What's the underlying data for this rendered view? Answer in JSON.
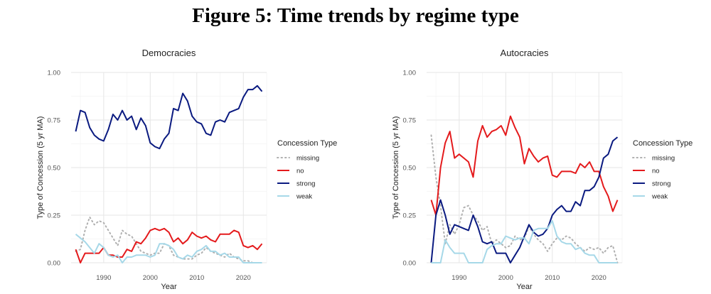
{
  "figure_title": "Figure 5: Time trends by regime type",
  "colors": {
    "missing": "#b0b0b0",
    "no": "#e41a1c",
    "strong": "#0a1a80",
    "weak": "#a6d8e8"
  },
  "chart_data": [
    {
      "type": "line",
      "title": "Democracies",
      "xlabel": "Year",
      "ylabel": "Type of Concession (5 yr MA)",
      "xlim": [
        1983,
        2025
      ],
      "ylim": [
        0,
        1
      ],
      "xticks": [
        1990,
        2000,
        2010,
        2020
      ],
      "yticks": [
        "0.00",
        "0.25",
        "0.50",
        "0.75",
        "1.00"
      ],
      "legend_title": "Concession Type",
      "legend_position": "right",
      "x": [
        1984,
        1985,
        1986,
        1987,
        1988,
        1989,
        1990,
        1991,
        1992,
        1993,
        1994,
        1995,
        1996,
        1997,
        1998,
        1999,
        2000,
        2001,
        2002,
        2003,
        2004,
        2005,
        2006,
        2007,
        2008,
        2009,
        2010,
        2011,
        2012,
        2013,
        2014,
        2015,
        2016,
        2017,
        2018,
        2019,
        2020,
        2021,
        2022,
        2023,
        2024
      ],
      "series": [
        {
          "name": "missing",
          "values": [
            0.06,
            0.07,
            0.17,
            0.24,
            0.2,
            0.22,
            0.21,
            0.17,
            0.13,
            0.09,
            0.17,
            0.15,
            0.14,
            0.1,
            0.06,
            0.05,
            0.04,
            0.05,
            0.05,
            0.1,
            0.09,
            0.04,
            0.03,
            0.02,
            0.02,
            0.02,
            0.04,
            0.05,
            0.08,
            0.06,
            0.05,
            0.04,
            0.03,
            0.05,
            0.03,
            0.02,
            0.01,
            0.01,
            0.0,
            0.0,
            0.0
          ]
        },
        {
          "name": "no",
          "values": [
            0.07,
            0.0,
            0.05,
            0.05,
            0.05,
            0.05,
            0.08,
            0.04,
            0.04,
            0.03,
            0.03,
            0.07,
            0.06,
            0.11,
            0.1,
            0.13,
            0.17,
            0.18,
            0.17,
            0.18,
            0.16,
            0.11,
            0.13,
            0.1,
            0.12,
            0.16,
            0.14,
            0.13,
            0.14,
            0.12,
            0.11,
            0.15,
            0.15,
            0.15,
            0.17,
            0.16,
            0.09,
            0.08,
            0.09,
            0.07,
            0.1
          ]
        },
        {
          "name": "strong",
          "values": [
            0.69,
            0.8,
            0.79,
            0.71,
            0.67,
            0.65,
            0.64,
            0.7,
            0.78,
            0.75,
            0.8,
            0.75,
            0.77,
            0.7,
            0.76,
            0.72,
            0.63,
            0.61,
            0.6,
            0.65,
            0.68,
            0.81,
            0.8,
            0.89,
            0.85,
            0.77,
            0.74,
            0.73,
            0.68,
            0.67,
            0.74,
            0.75,
            0.74,
            0.79,
            0.8,
            0.81,
            0.87,
            0.91,
            0.91,
            0.93,
            0.9
          ]
        },
        {
          "name": "weak",
          "values": [
            0.15,
            0.13,
            0.11,
            0.08,
            0.05,
            0.1,
            0.08,
            0.04,
            0.03,
            0.04,
            0.0,
            0.03,
            0.03,
            0.04,
            0.04,
            0.04,
            0.03,
            0.04,
            0.1,
            0.1,
            0.09,
            0.07,
            0.03,
            0.02,
            0.04,
            0.03,
            0.06,
            0.07,
            0.09,
            0.06,
            0.06,
            0.04,
            0.05,
            0.03,
            0.03,
            0.03,
            0.0,
            0.0,
            0.0,
            0.0,
            0.0
          ]
        }
      ]
    },
    {
      "type": "line",
      "title": "Autocracies",
      "xlabel": "Year",
      "ylabel": "Type of Concession (5 yr MA)",
      "xlim": [
        1983,
        2025
      ],
      "ylim": [
        0,
        1
      ],
      "xticks": [
        1990,
        2000,
        2010,
        2020
      ],
      "yticks": [
        "0.00",
        "0.25",
        "0.50",
        "0.75",
        "1.00"
      ],
      "legend_title": "Concession Type",
      "legend_position": "right",
      "x": [
        1984,
        1985,
        1986,
        1987,
        1988,
        1989,
        1990,
        1991,
        1992,
        1993,
        1994,
        1995,
        1996,
        1997,
        1998,
        1999,
        2000,
        2001,
        2002,
        2003,
        2004,
        2005,
        2006,
        2007,
        2008,
        2009,
        2010,
        2011,
        2012,
        2013,
        2014,
        2015,
        2016,
        2017,
        2018,
        2019,
        2020,
        2021,
        2022,
        2023,
        2024
      ],
      "series": [
        {
          "name": "missing",
          "values": [
            0.67,
            0.45,
            0.3,
            0.1,
            0.2,
            0.15,
            0.2,
            0.29,
            0.3,
            0.25,
            0.22,
            0.17,
            0.19,
            0.1,
            0.12,
            0.1,
            0.08,
            0.09,
            0.14,
            0.12,
            0.13,
            0.19,
            0.15,
            0.12,
            0.1,
            0.06,
            0.1,
            0.13,
            0.12,
            0.14,
            0.13,
            0.1,
            0.08,
            0.06,
            0.08,
            0.07,
            0.08,
            0.05,
            0.08,
            0.09,
            0.0
          ]
        },
        {
          "name": "no",
          "values": [
            0.33,
            0.25,
            0.5,
            0.63,
            0.69,
            0.55,
            0.57,
            0.55,
            0.53,
            0.45,
            0.64,
            0.72,
            0.66,
            0.69,
            0.7,
            0.72,
            0.67,
            0.77,
            0.71,
            0.66,
            0.52,
            0.6,
            0.56,
            0.53,
            0.55,
            0.56,
            0.46,
            0.45,
            0.48,
            0.48,
            0.48,
            0.47,
            0.52,
            0.5,
            0.53,
            0.48,
            0.48,
            0.4,
            0.35,
            0.27,
            0.33
          ]
        },
        {
          "name": "strong",
          "values": [
            0.0,
            0.25,
            0.33,
            0.25,
            0.15,
            0.2,
            0.19,
            0.18,
            0.17,
            0.25,
            0.19,
            0.11,
            0.1,
            0.11,
            0.05,
            0.05,
            0.05,
            0.0,
            0.04,
            0.08,
            0.14,
            0.2,
            0.16,
            0.14,
            0.15,
            0.18,
            0.25,
            0.28,
            0.3,
            0.27,
            0.27,
            0.32,
            0.3,
            0.38,
            0.38,
            0.4,
            0.45,
            0.55,
            0.57,
            0.64,
            0.66
          ]
        },
        {
          "name": "weak",
          "values": [
            0.0,
            0.0,
            0.0,
            0.12,
            0.08,
            0.05,
            0.05,
            0.05,
            0.0,
            0.0,
            0.0,
            0.0,
            0.07,
            0.09,
            0.1,
            0.1,
            0.14,
            0.13,
            0.12,
            0.13,
            0.13,
            0.1,
            0.17,
            0.18,
            0.18,
            0.18,
            0.22,
            0.14,
            0.11,
            0.1,
            0.1,
            0.07,
            0.08,
            0.05,
            0.04,
            0.04,
            0.0,
            0.0,
            0.0,
            0.0,
            0.0
          ]
        }
      ]
    }
  ]
}
